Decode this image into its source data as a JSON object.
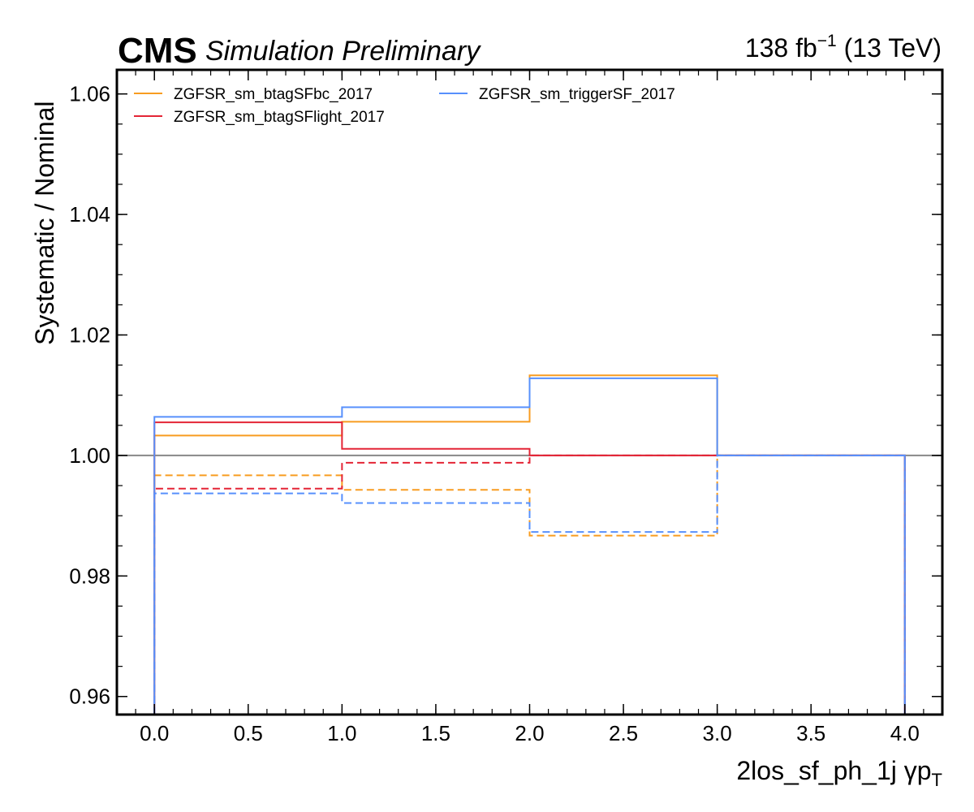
{
  "header": {
    "experiment": "CMS",
    "status": "Simulation Preliminary",
    "lumi_value": "138 fb",
    "lumi_exp": "−1",
    "energy": " (13 TeV)"
  },
  "chart_data": {
    "type": "line",
    "drawstyle": "steps",
    "xlabel": "2los_sf_ph_1j   γp",
    "xlabel_sub": "T",
    "ylabel": "Systematic / Nominal",
    "xlim": [
      -0.2,
      4.2
    ],
    "ylim": [
      0.957,
      1.064
    ],
    "xticks": [
      "0.0",
      "0.5",
      "1.0",
      "1.5",
      "2.0",
      "2.5",
      "3.0",
      "3.5",
      "4.0"
    ],
    "xtick_values": [
      0,
      0.5,
      1,
      1.5,
      2,
      2.5,
      3,
      3.5,
      4
    ],
    "yticks": [
      "0.96",
      "0.98",
      "1.00",
      "1.02",
      "1.04",
      "1.06"
    ],
    "ytick_values": [
      0.96,
      0.98,
      1.0,
      1.02,
      1.04,
      1.06
    ],
    "reference_line": 1.0,
    "bin_edges": [
      0,
      1,
      2,
      3,
      4
    ],
    "legend_position": "top-left",
    "series": [
      {
        "name": "ZGFSR_sm_btagSFbc_2017",
        "variation": "up",
        "color": "#f89c20",
        "dashed": false,
        "values": [
          1.0033,
          1.0056,
          1.0133,
          1.0
        ]
      },
      {
        "name": "",
        "variation": "down",
        "color": "#f89c20",
        "dashed": true,
        "values": [
          0.9967,
          0.9943,
          0.9867,
          1.0
        ]
      },
      {
        "name": "ZGFSR_sm_btagSFlight_2017",
        "variation": "up",
        "color": "#e42536",
        "dashed": false,
        "values": [
          1.0055,
          1.0011,
          1.0,
          1.0
        ]
      },
      {
        "name": "",
        "variation": "down",
        "color": "#e42536",
        "dashed": true,
        "values": [
          0.9945,
          0.9988,
          1.0,
          1.0
        ]
      },
      {
        "name": "ZGFSR_sm_triggerSF_2017",
        "variation": "up",
        "color": "#5790fc",
        "dashed": false,
        "values": [
          1.0064,
          1.008,
          1.0128,
          1.0
        ]
      },
      {
        "name": "",
        "variation": "down",
        "color": "#5790fc",
        "dashed": true,
        "values": [
          0.9937,
          0.9921,
          0.9873,
          1.0
        ]
      }
    ],
    "reference_color": "#888888"
  }
}
